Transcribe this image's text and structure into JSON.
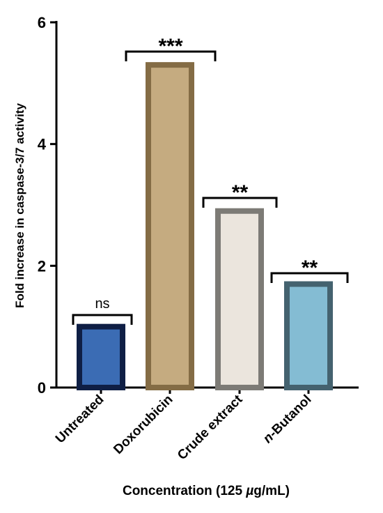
{
  "chart_data": {
    "type": "bar",
    "categories": [
      "Untreated",
      "Doxorubicin",
      "Crude extract",
      "n-Butanol"
    ],
    "category_labels": [
      {
        "prefix": "",
        "italic": "",
        "text": "Untreated"
      },
      {
        "prefix": "",
        "italic": "",
        "text": "Doxorubicin"
      },
      {
        "prefix": "",
        "italic": "",
        "text": "Crude extract"
      },
      {
        "prefix": "",
        "italic": "n",
        "text": "-Butanol"
      }
    ],
    "values": [
      1.0,
      5.3,
      2.9,
      1.7
    ],
    "significance": [
      "ns",
      "***",
      "**",
      "**"
    ],
    "fill_colors": [
      "#3b6cb4",
      "#c5ab80",
      "#ebe5dd",
      "#84bcd3"
    ],
    "edge_colors": [
      "#0f1f45",
      "#846c45",
      "#7d7b76",
      "#44626f"
    ],
    "xlabel_parts": {
      "before": "Concentration (125 ",
      "italic": "µ",
      "after": "g/mL)"
    },
    "ylabel": "Fold increase in caspase-3/7 activity",
    "ylim": [
      0,
      6
    ],
    "yticks": [
      0,
      2,
      4,
      6
    ],
    "grid": false,
    "legend": "none"
  }
}
